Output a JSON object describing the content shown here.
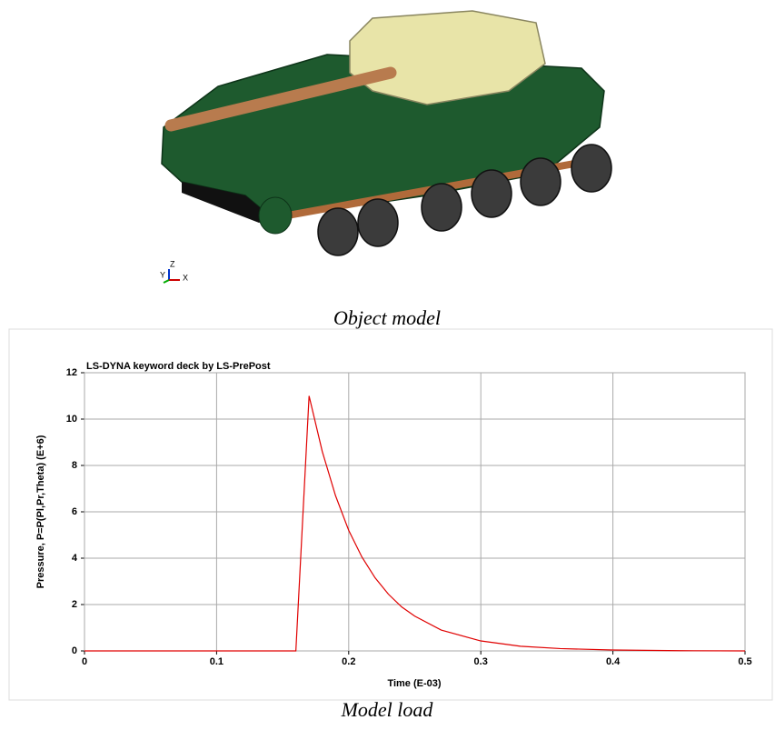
{
  "object_model": {
    "axes": {
      "z": "Z",
      "y": "Y",
      "x": "X"
    },
    "caption": "Object model"
  },
  "chart_data": {
    "type": "line",
    "title": "LS-DYNA keyword deck by LS-PrePost",
    "x_label": "Time (E-03)",
    "y_label": "Pressure, P=P(Pl,Pr,Theta) (E+6)",
    "x": [
      0,
      0.16,
      0.17,
      0.18,
      0.19,
      0.2,
      0.21,
      0.22,
      0.23,
      0.24,
      0.25,
      0.27,
      0.3,
      0.33,
      0.36,
      0.4,
      0.45,
      0.5
    ],
    "values": [
      0,
      0,
      11,
      8.6,
      6.7,
      5.2,
      4.05,
      3.15,
      2.45,
      1.9,
      1.5,
      0.9,
      0.43,
      0.2,
      0.1,
      0.04,
      0.01,
      0
    ],
    "color": "#e00000",
    "xlim": [
      0,
      0.5
    ],
    "xticks": [
      0,
      0.1,
      0.2,
      0.3,
      0.4,
      0.5
    ],
    "ylim": [
      0,
      12
    ],
    "yticks": [
      0,
      2,
      4,
      6,
      8,
      10,
      12
    ],
    "grid": true,
    "caption": "Model load"
  }
}
